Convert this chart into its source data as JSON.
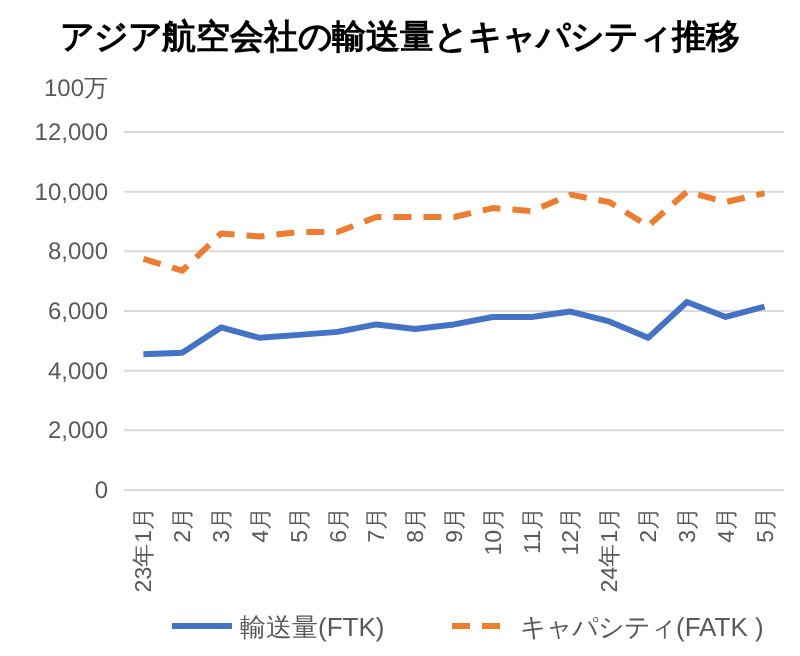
{
  "chart_data": {
    "type": "line",
    "title": "アジア航空会社の輸送量とキャパシティ推移",
    "ylabel": "100万",
    "categories": [
      "23年1月",
      "2月",
      "3月",
      "4月",
      "5月",
      "6月",
      "7月",
      "8月",
      "9月",
      "10月",
      "11月",
      "12月",
      "24年1月",
      "2月",
      "3月",
      "4月",
      "5月"
    ],
    "series": [
      {
        "name": "輸送量(FTK)",
        "color": "#4472c4",
        "line_style": "solid",
        "values": [
          4550,
          4600,
          5450,
          5100,
          5200,
          5300,
          5550,
          5400,
          5550,
          5800,
          5800,
          5980,
          5650,
          5100,
          6300,
          5800,
          6150
        ]
      },
      {
        "name": "キャパシティ(FATK )",
        "color": "#ed7d31",
        "line_style": "dashed",
        "values": [
          7750,
          7350,
          8600,
          8500,
          8650,
          8650,
          9150,
          9150,
          9150,
          9450,
          9350,
          9900,
          9650,
          8850,
          10000,
          9650,
          9950
        ]
      }
    ],
    "ylim": [
      0,
      12000
    ],
    "yticks": [
      {
        "value": 0,
        "label": "0"
      },
      {
        "value": 2000,
        "label": "2,000"
      },
      {
        "value": 4000,
        "label": "4,000"
      },
      {
        "value": 6000,
        "label": "6,000"
      },
      {
        "value": 8000,
        "label": "8,000"
      },
      {
        "value": 10000,
        "label": "10,000"
      },
      {
        "value": 12000,
        "label": "12,000"
      }
    ],
    "grid": "y",
    "legend": "bottom",
    "marker": "none"
  }
}
